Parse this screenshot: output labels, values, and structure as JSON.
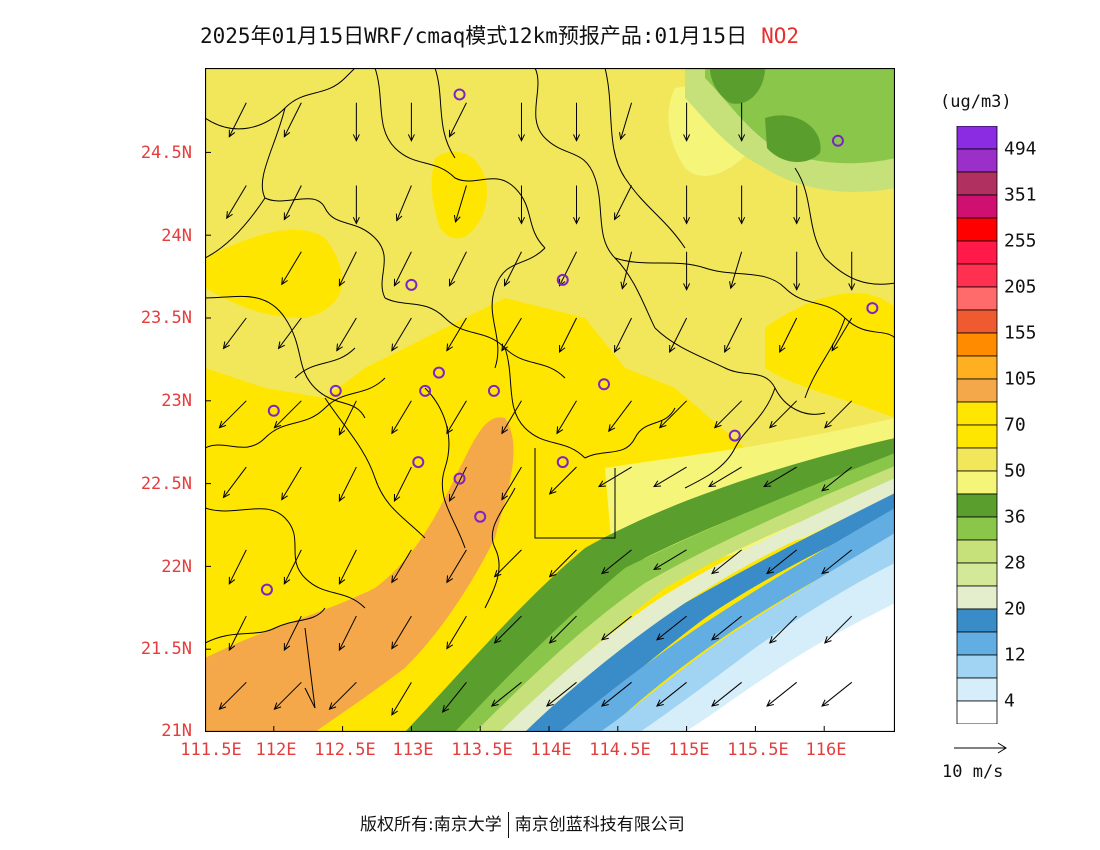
{
  "title": "2025年01月15日WRF/cmaq模式12km预报产品:01月15日",
  "species": "NO2",
  "lat_labels": [
    "24.5N",
    "24N",
    "23.5N",
    "23N",
    "22.5N",
    "22N",
    "21.5N",
    "21N"
  ],
  "lon_labels": [
    "111.5E",
    "112E",
    "112.5E",
    "113E",
    "113.5E",
    "114E",
    "114.5E",
    "115E",
    "115.5E",
    "116E"
  ],
  "colorbar": {
    "unit": "(ug/m3)",
    "labels": [
      "494",
      "351",
      "255",
      "205",
      "155",
      "105",
      "70",
      "50",
      "36",
      "28",
      "20",
      "12",
      "4"
    ],
    "colors": [
      "#8b2be2",
      "#9b30c8",
      "#b0305f",
      "#d01070",
      "#ff0000",
      "#ff1a4a",
      "#ff3050",
      "#ff6a6a",
      "#f05a30",
      "#ff8c00",
      "#ffb020",
      "#f5a84a",
      "#ffe600",
      "#ffe600",
      "#f2e65a",
      "#f5f57a",
      "#5a9e2e",
      "#8ac64a",
      "#c6e07a",
      "#d4e89a",
      "#e4eecc",
      "#3a8cc8",
      "#62aee2",
      "#a0d4f2",
      "#d6eefa",
      "#ffffff"
    ]
  },
  "wind_ref": "10 m/s",
  "stations_lonlat": [
    [
      113.35,
      24.85
    ],
    [
      113.0,
      23.7
    ],
    [
      114.1,
      23.73
    ],
    [
      116.1,
      24.57
    ],
    [
      116.35,
      23.56
    ],
    [
      112.0,
      22.94
    ],
    [
      112.45,
      23.06
    ],
    [
      113.1,
      23.06
    ],
    [
      113.2,
      23.17
    ],
    [
      113.6,
      23.06
    ],
    [
      114.4,
      23.1
    ],
    [
      113.05,
      22.63
    ],
    [
      113.35,
      22.53
    ],
    [
      114.1,
      22.63
    ],
    [
      113.5,
      22.3
    ],
    [
      115.35,
      22.79
    ],
    [
      111.95,
      21.86
    ]
  ],
  "wind_vectors": [
    [
      111.8,
      24.8,
      -0.5,
      -1.0
    ],
    [
      112.2,
      24.8,
      -0.5,
      -1.0
    ],
    [
      112.6,
      24.8,
      0.0,
      -1.0
    ],
    [
      113.0,
      24.8,
      0.0,
      -1.0
    ],
    [
      113.4,
      24.8,
      -0.5,
      -1.0
    ],
    [
      113.8,
      24.8,
      0.0,
      -1.0
    ],
    [
      114.2,
      24.8,
      0.0,
      -1.0
    ],
    [
      114.6,
      24.8,
      -0.3,
      -1.0
    ],
    [
      115.0,
      24.8,
      0.0,
      -1.0
    ],
    [
      115.4,
      24.8,
      0.0,
      -1.0
    ],
    [
      111.8,
      24.3,
      -0.6,
      -1.0
    ],
    [
      112.2,
      24.3,
      -0.5,
      -1.0
    ],
    [
      112.6,
      24.3,
      0.0,
      -1.0
    ],
    [
      113.0,
      24.3,
      -0.5,
      -1.2
    ],
    [
      113.4,
      24.3,
      -0.3,
      -1.0
    ],
    [
      113.8,
      24.3,
      0.0,
      -1.0
    ],
    [
      114.2,
      24.3,
      0.0,
      -1.0
    ],
    [
      114.6,
      24.3,
      -0.5,
      -1.0
    ],
    [
      115.0,
      24.3,
      0.0,
      -1.0
    ],
    [
      115.4,
      24.3,
      0.0,
      -1.0
    ],
    [
      115.8,
      24.3,
      0.0,
      -1.0
    ],
    [
      112.2,
      23.9,
      -0.6,
      -1.0
    ],
    [
      112.6,
      23.9,
      -0.5,
      -1.0
    ],
    [
      113.0,
      23.9,
      -0.5,
      -1.0
    ],
    [
      113.4,
      23.9,
      -0.5,
      -1.0
    ],
    [
      113.8,
      23.9,
      -0.5,
      -1.0
    ],
    [
      114.2,
      23.9,
      -0.5,
      -1.0
    ],
    [
      114.6,
      23.9,
      -0.3,
      -1.2
    ],
    [
      115.0,
      23.9,
      0.0,
      -1.0
    ],
    [
      115.4,
      23.9,
      -0.3,
      -1.0
    ],
    [
      115.8,
      23.9,
      0.0,
      -1.0
    ],
    [
      116.2,
      23.9,
      0.0,
      -1.0
    ],
    [
      111.8,
      23.5,
      -0.6,
      -0.8
    ],
    [
      112.2,
      23.5,
      -0.6,
      -0.8
    ],
    [
      112.6,
      23.5,
      -0.6,
      -1.0
    ],
    [
      113.0,
      23.5,
      -0.6,
      -1.0
    ],
    [
      113.4,
      23.5,
      -0.6,
      -1.0
    ],
    [
      113.8,
      23.5,
      -0.6,
      -1.0
    ],
    [
      114.2,
      23.5,
      -0.5,
      -1.0
    ],
    [
      114.6,
      23.5,
      -0.5,
      -1.0
    ],
    [
      115.0,
      23.5,
      -0.5,
      -1.0
    ],
    [
      115.4,
      23.5,
      -0.5,
      -1.0
    ],
    [
      115.8,
      23.5,
      -0.5,
      -1.0
    ],
    [
      116.2,
      23.5,
      -0.6,
      -1.0
    ],
    [
      111.8,
      23.0,
      -0.8,
      -0.8
    ],
    [
      112.2,
      23.0,
      -0.8,
      -0.8
    ],
    [
      112.6,
      23.0,
      -0.5,
      -1.0
    ],
    [
      113.0,
      23.0,
      -0.6,
      -1.0
    ],
    [
      113.4,
      23.0,
      -0.6,
      -1.0
    ],
    [
      113.8,
      23.0,
      -0.6,
      -1.0
    ],
    [
      114.2,
      23.0,
      -0.6,
      -1.0
    ],
    [
      114.6,
      23.0,
      -0.6,
      -0.8
    ],
    [
      115.0,
      23.0,
      -0.8,
      -0.8
    ],
    [
      115.4,
      23.0,
      -0.8,
      -0.8
    ],
    [
      115.8,
      23.0,
      -0.8,
      -0.8
    ],
    [
      116.2,
      23.0,
      -0.8,
      -0.8
    ],
    [
      111.8,
      22.6,
      -0.6,
      -0.8
    ],
    [
      112.2,
      22.6,
      -0.6,
      -1.0
    ],
    [
      112.6,
      22.6,
      -0.5,
      -1.0
    ],
    [
      113.0,
      22.6,
      -0.5,
      -1.0
    ],
    [
      113.4,
      22.6,
      -0.5,
      -1.0
    ],
    [
      113.8,
      22.6,
      -0.6,
      -1.0
    ],
    [
      114.2,
      22.6,
      -0.8,
      -0.8
    ],
    [
      114.6,
      22.6,
      -1.0,
      -0.6
    ],
    [
      115.0,
      22.6,
      -1.0,
      -0.6
    ],
    [
      115.4,
      22.6,
      -1.0,
      -0.6
    ],
    [
      115.8,
      22.6,
      -1.0,
      -0.6
    ],
    [
      116.2,
      22.6,
      -1.0,
      -0.8
    ],
    [
      111.8,
      22.1,
      -0.5,
      -1.0
    ],
    [
      112.2,
      22.1,
      -0.5,
      -1.0
    ],
    [
      112.6,
      22.1,
      -0.5,
      -1.0
    ],
    [
      113.0,
      22.1,
      -0.6,
      -1.0
    ],
    [
      113.4,
      22.1,
      -0.6,
      -1.0
    ],
    [
      113.8,
      22.1,
      -0.8,
      -0.8
    ],
    [
      114.2,
      22.1,
      -0.8,
      -0.8
    ],
    [
      114.6,
      22.1,
      -1.0,
      -0.8
    ],
    [
      115.0,
      22.1,
      -1.0,
      -0.6
    ],
    [
      115.4,
      22.1,
      -1.0,
      -0.8
    ],
    [
      115.8,
      22.1,
      -1.0,
      -0.8
    ],
    [
      116.2,
      22.1,
      -1.0,
      -0.8
    ],
    [
      111.8,
      21.7,
      -0.5,
      -1.0
    ],
    [
      112.2,
      21.7,
      -0.5,
      -1.0
    ],
    [
      112.6,
      21.7,
      -0.5,
      -1.0
    ],
    [
      113.0,
      21.7,
      -0.6,
      -1.0
    ],
    [
      113.4,
      21.7,
      -0.6,
      -1.0
    ],
    [
      113.8,
      21.7,
      -0.8,
      -0.8
    ],
    [
      114.2,
      21.7,
      -0.8,
      -0.8
    ],
    [
      114.6,
      21.7,
      -1.0,
      -0.8
    ],
    [
      115.0,
      21.7,
      -1.0,
      -0.8
    ],
    [
      115.4,
      21.7,
      -1.0,
      -0.8
    ],
    [
      115.8,
      21.7,
      -1.0,
      -1.0
    ],
    [
      116.2,
      21.7,
      -1.0,
      -1.0
    ],
    [
      111.8,
      21.3,
      -0.8,
      -0.8
    ],
    [
      112.2,
      21.3,
      -0.8,
      -0.8
    ],
    [
      112.6,
      21.3,
      -0.8,
      -0.8
    ],
    [
      113.0,
      21.3,
      -0.6,
      -1.0
    ],
    [
      113.4,
      21.3,
      -0.8,
      -1.0
    ],
    [
      113.8,
      21.3,
      -1.0,
      -0.8
    ],
    [
      114.2,
      21.3,
      -1.0,
      -0.8
    ],
    [
      114.6,
      21.3,
      -1.0,
      -0.8
    ],
    [
      115.0,
      21.3,
      -1.0,
      -0.8
    ],
    [
      115.4,
      21.3,
      -1.0,
      -0.8
    ],
    [
      115.8,
      21.3,
      -1.0,
      -0.8
    ],
    [
      116.2,
      21.3,
      -1.0,
      -0.8
    ]
  ],
  "footer": {
    "copyright": "版权所有:南京大学",
    "company": "南京创蓝科技有限公司"
  }
}
